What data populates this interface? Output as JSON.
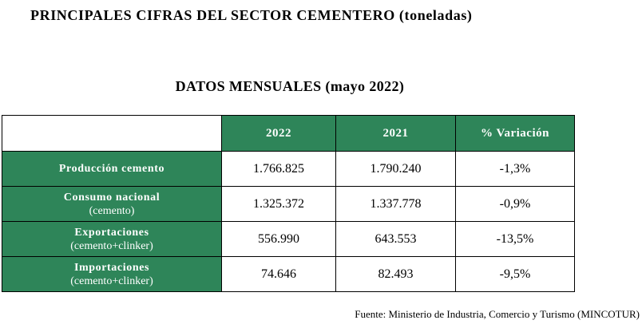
{
  "title": "PRINCIPALES CIFRAS DEL SECTOR CEMENTERO (toneladas)",
  "subtitle": "DATOS MENSUALES (mayo 2022)",
  "table": {
    "headers": [
      "",
      "2022",
      "2021",
      "% Variación"
    ],
    "rows": [
      {
        "label": "Producción cemento",
        "sublabel": "",
        "v2022": "1.766.825",
        "v2021": "1.790.240",
        "variation": "-1,3%"
      },
      {
        "label": "Consumo nacional",
        "sublabel": "(cemento)",
        "v2022": "1.325.372",
        "v2021": "1.337.778",
        "variation": "-0,9%"
      },
      {
        "label": "Exportaciones",
        "sublabel": "(cemento+clinker)",
        "v2022": "556.990",
        "v2021": "643.553",
        "variation": "-13,5%"
      },
      {
        "label": "Importaciones",
        "sublabel": "(cemento+clinker)",
        "v2022": "74.646",
        "v2021": "82.493",
        "variation": "-9,5%"
      }
    ]
  },
  "source": "Fuente: Ministerio de Industria, Comercio y Turismo (MINCOTUR)",
  "colors": {
    "header_bg": "#2e8559",
    "header_text": "#ffffff",
    "border": "#000000"
  }
}
